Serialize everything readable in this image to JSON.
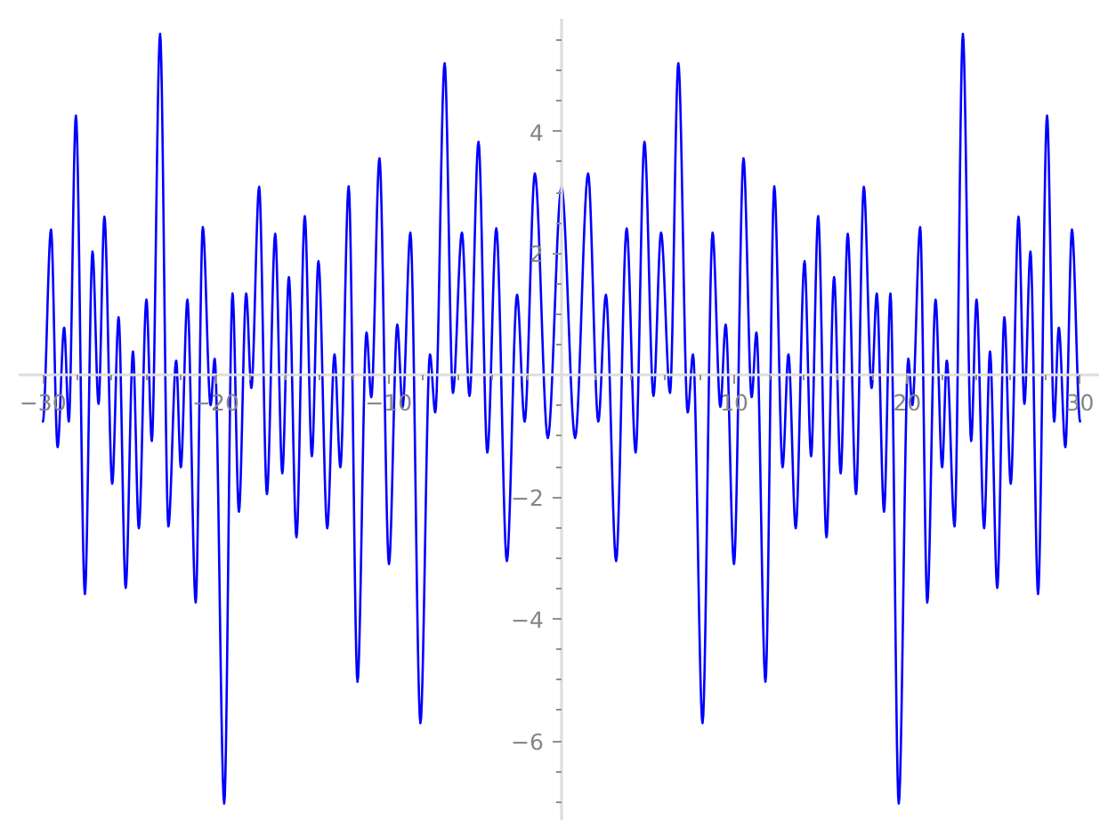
{
  "chart_data": {
    "type": "line",
    "xlim": [
      -31.4,
      31.1
    ],
    "ylim": [
      -7.3,
      5.85
    ],
    "xticks": [
      {
        "value": -30,
        "label": "−30"
      },
      {
        "value": -28,
        "label": null
      },
      {
        "value": -26,
        "label": null
      },
      {
        "value": -24,
        "label": null
      },
      {
        "value": -22,
        "label": null
      },
      {
        "value": -20,
        "label": "−20"
      },
      {
        "value": -18,
        "label": null
      },
      {
        "value": -16,
        "label": null
      },
      {
        "value": -14,
        "label": null
      },
      {
        "value": -12,
        "label": null
      },
      {
        "value": -10,
        "label": "−10"
      },
      {
        "value": -8,
        "label": null
      },
      {
        "value": -6,
        "label": null
      },
      {
        "value": -4,
        "label": null
      },
      {
        "value": -2,
        "label": null
      },
      {
        "value": 2,
        "label": null
      },
      {
        "value": 4,
        "label": null
      },
      {
        "value": 6,
        "label": null
      },
      {
        "value": 8,
        "label": null
      },
      10,
      {
        "value": 12,
        "label": null
      },
      {
        "value": 14,
        "label": null
      },
      {
        "value": 16,
        "label": null
      },
      {
        "value": 18,
        "label": null
      },
      20,
      {
        "value": 22,
        "label": null
      },
      {
        "value": 24,
        "label": null
      },
      {
        "value": 26,
        "label": null
      },
      {
        "value": 28,
        "label": null
      },
      30
    ],
    "yticks": [
      {
        "value": -7,
        "label": null
      },
      {
        "value": -6.5,
        "label": null
      },
      {
        "value": -6,
        "label": "−6"
      },
      {
        "value": -5.5,
        "label": null
      },
      {
        "value": -5,
        "label": null
      },
      {
        "value": -4.5,
        "label": null
      },
      {
        "value": -4,
        "label": "−4"
      },
      {
        "value": -3.5,
        "label": null
      },
      {
        "value": -3,
        "label": null
      },
      {
        "value": -2.5,
        "label": null
      },
      {
        "value": -2,
        "label": "−2"
      },
      {
        "value": -1.5,
        "label": null
      },
      {
        "value": -1,
        "label": null
      },
      {
        "value": -0.5,
        "label": null
      },
      {
        "value": 0.5,
        "label": null
      },
      {
        "value": 1,
        "label": null
      },
      {
        "value": 1.5,
        "label": null
      },
      2,
      {
        "value": 2.5,
        "label": null
      },
      {
        "value": 3,
        "label": null
      },
      {
        "value": 3.5,
        "label": null
      },
      4,
      {
        "value": 4.5,
        "label": null
      },
      {
        "value": 5,
        "label": null
      },
      {
        "value": 5.5,
        "label": null
      }
    ],
    "x": [
      -30,
      -29.53,
      -29.15,
      -28.77,
      -28.5,
      -28.09,
      -27.57,
      -27.13,
      -26.78,
      -26.44,
      -25.99,
      -25.62,
      -25.21,
      -24.79,
      -24.45,
      -24.01,
      -23.7,
      -23.22,
      -22.74,
      -22.29,
      -22.02,
      -21.64,
      -21.16,
      -20.75,
      -20.3,
      -20.06,
      -19.51,
      -19.03,
      -18.66,
      -18.24,
      -17.94,
      -17.49,
      -17.04,
      -16.56,
      -16.15,
      -15.77,
      -15.33,
      -14.85,
      -14.44,
      -14.06,
      -13.55,
      -13.13,
      -12.79,
      -12.31,
      -11.8,
      -11.28,
      -11.0,
      -10.53,
      -9.98,
      -9.5,
      -9.19,
      -8.74,
      -8.16,
      -7.61,
      -7.3,
      -6.76,
      -6.28,
      -5.76,
      -5.32,
      -4.8,
      -4.29,
      -3.77,
      -3.16,
      -2.57,
      -2.13,
      -1.54,
      -0.79,
      0,
      0.79,
      1.54,
      2.13,
      2.57,
      3.16,
      3.77,
      4.29,
      4.8,
      5.32,
      5.76,
      6.28,
      6.76,
      7.3,
      7.61,
      8.16,
      8.74,
      9.19,
      9.5,
      9.98,
      10.53,
      11.0,
      11.28,
      11.8,
      12.31,
      12.79,
      13.13,
      13.55,
      14.06,
      14.44,
      14.85,
      15.33,
      15.77,
      16.15,
      16.56,
      17.04,
      17.49,
      17.94,
      18.24,
      18.66,
      19.03,
      19.51,
      20.06,
      20.3,
      20.75,
      21.16,
      21.64,
      22.02,
      22.29,
      22.74,
      23.22,
      23.7,
      24.01,
      24.45,
      24.79,
      25.21,
      25.62,
      25.99,
      26.44,
      26.78,
      27.13,
      27.57,
      28.09,
      28.5,
      28.77,
      29.15,
      29.53,
      30
    ],
    "series": [
      {
        "color": "#0000ff",
        "values": [
          -0.76,
          2.39,
          -1.18,
          0.78,
          -0.76,
          4.26,
          -3.59,
          2.03,
          -0.47,
          2.6,
          -1.78,
          0.95,
          -3.49,
          0.39,
          -2.51,
          1.24,
          -1.08,
          5.6,
          -2.48,
          0.24,
          -1.51,
          1.24,
          -3.73,
          2.43,
          -0.49,
          0.27,
          -7.03,
          1.34,
          -2.24,
          1.34,
          -0.21,
          3.09,
          -1.95,
          2.32,
          -1.61,
          1.61,
          -2.66,
          2.61,
          -1.33,
          1.87,
          -2.51,
          0.34,
          -1.51,
          3.1,
          -5.03,
          0.7,
          -0.36,
          3.56,
          -3.1,
          0.83,
          -0.52,
          2.34,
          -5.71,
          0.34,
          -0.61,
          5.12,
          -0.29,
          2.34,
          -0.34,
          3.83,
          -1.27,
          2.41,
          -3.05,
          1.32,
          -0.76,
          3.31,
          -1.03,
          3.09,
          -1.03,
          3.31,
          -0.76,
          1.32,
          -3.05,
          2.41,
          -1.27,
          3.83,
          -0.34,
          2.34,
          -0.29,
          5.12,
          -0.61,
          0.34,
          -5.71,
          2.34,
          -0.52,
          0.83,
          -3.1,
          3.56,
          -0.36,
          0.7,
          -5.03,
          3.1,
          -1.51,
          0.34,
          -2.51,
          1.87,
          -1.33,
          2.61,
          -2.66,
          1.61,
          -1.61,
          2.32,
          -1.95,
          3.09,
          -0.21,
          1.34,
          -2.24,
          1.34,
          -7.03,
          0.27,
          -0.49,
          2.43,
          -3.73,
          1.24,
          -1.51,
          0.24,
          -2.48,
          5.6,
          -1.08,
          1.24,
          -2.51,
          0.39,
          -3.49,
          0.95,
          -1.78,
          2.6,
          -0.47,
          2.03,
          -3.59,
          4.26,
          -0.76,
          0.78,
          -1.18,
          2.39,
          -0.76
        ]
      }
    ]
  }
}
